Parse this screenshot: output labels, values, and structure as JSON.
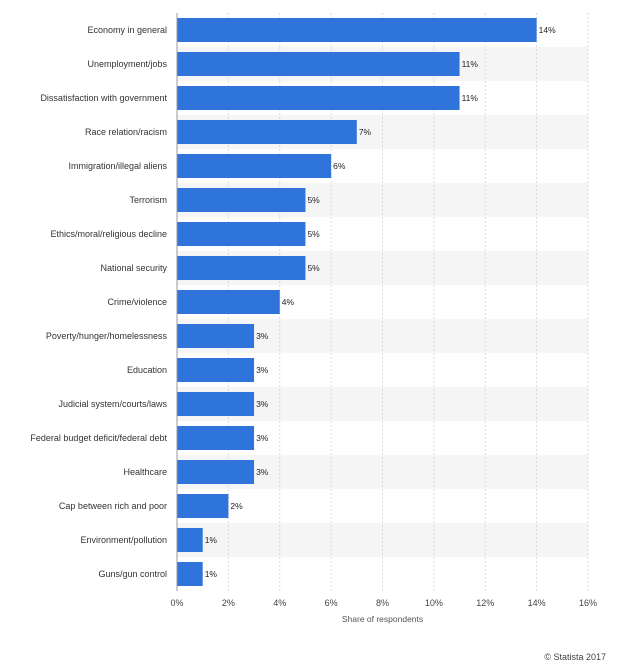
{
  "chart_data": {
    "type": "bar",
    "orientation": "horizontal",
    "categories": [
      "Economy in general",
      "Unemployment/jobs",
      "Dissatisfaction with government",
      "Race relation/racism",
      "Immigration/illegal aliens",
      "Terrorism",
      "Ethics/moral/religious decline",
      "National security",
      "Crime/violence",
      "Poverty/hunger/homelessness",
      "Education",
      "Judicial system/courts/laws",
      "Federal budget deficit/federal debt",
      "Healthcare",
      "Cap between rich and poor",
      "Environment/pollution",
      "Guns/gun control"
    ],
    "values": [
      14,
      11,
      11,
      7,
      6,
      5,
      5,
      5,
      4,
      3,
      3,
      3,
      3,
      3,
      2,
      1,
      1
    ],
    "value_labels": [
      "14%",
      "11%",
      "11%",
      "7%",
      "6%",
      "5%",
      "5%",
      "5%",
      "4%",
      "3%",
      "3%",
      "3%",
      "3%",
      "3%",
      "2%",
      "1%",
      "1%"
    ],
    "xlabel": "Share of respondents",
    "xlim": [
      0,
      16
    ],
    "xticks": [
      0,
      2,
      4,
      6,
      8,
      10,
      12,
      14,
      16
    ],
    "xtick_labels": [
      "0%",
      "2%",
      "4%",
      "6%",
      "8%",
      "10%",
      "12%",
      "14%",
      "16%"
    ],
    "bar_color": "#2f74db",
    "stripe_color": "#f5f5f5",
    "grid": true,
    "legend": "none"
  },
  "footer": {
    "credit": "© Statista 2017"
  }
}
